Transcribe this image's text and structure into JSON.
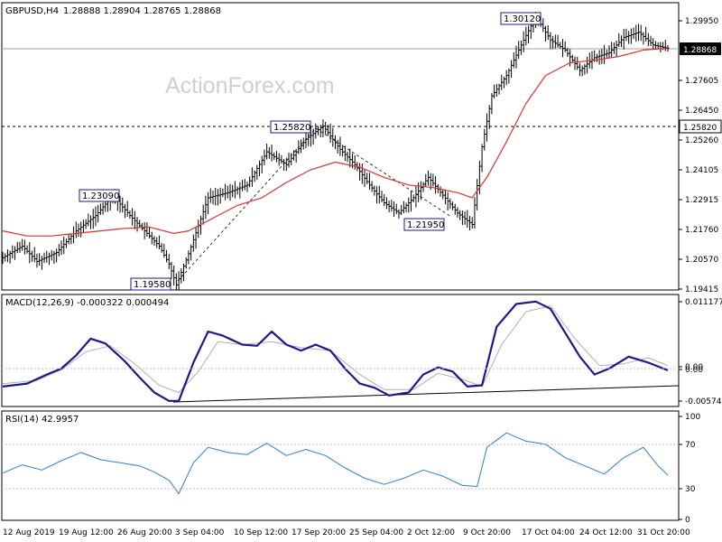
{
  "header": {
    "symbol": "GBPUSD,H4",
    "ohlc": "1.28888 1.28904 1.28765 1.28868"
  },
  "watermark": "ActionForex.com",
  "price_panel": {
    "y_ticks": [
      "1.29950",
      "1.27605",
      "1.26450",
      "1.25260",
      "1.24105",
      "1.22915",
      "1.21760",
      "1.20570",
      "1.19415"
    ],
    "current_price_label": "1.28868",
    "level_label": "1.25820",
    "annotations": [
      "1.23090",
      "1.19580",
      "1.25820",
      "1.21950",
      "1.30120"
    ]
  },
  "macd_panel": {
    "title": "MACD(12,26,9) -0.000322 0.000494",
    "y_ticks": [
      "0.011177",
      "0.00",
      "0.00",
      "-0.005746"
    ]
  },
  "rsi_panel": {
    "title": "RSI(14) 42.9957",
    "y_ticks": [
      "100",
      "70",
      "30",
      "0"
    ]
  },
  "x_axis": {
    "labels": [
      "12 Aug 2019",
      "19 Aug 12:00",
      "26 Aug 20:00",
      "3 Sep 04:00",
      "10 Sep 12:00",
      "17 Sep 20:00",
      "25 Sep 04:00",
      "2 Oct 12:00",
      "9 Oct 20:00",
      "17 Oct 04:00",
      "24 Oct 12:00",
      "31 Oct 20:00"
    ]
  },
  "colors": {
    "price_bars": "#000000",
    "moving_average": "#e03030",
    "macd_line": "#1a1a8c",
    "signal_line": "#b0b0b0",
    "rsi_line": "#2a7fd4",
    "grid": "#c0c0c0"
  },
  "chart_data": [
    {
      "type": "line",
      "name": "price",
      "points": [
        [
          0,
          1.2065
        ],
        [
          8,
          1.211
        ],
        [
          14,
          1.205
        ],
        [
          22,
          1.2085
        ],
        [
          30,
          1.217
        ],
        [
          38,
          1.223
        ],
        [
          45,
          1.2309
        ],
        [
          52,
          1.223
        ],
        [
          58,
          1.217
        ],
        [
          64,
          1.211
        ],
        [
          68,
          1.204
        ],
        [
          71,
          1.1958
        ],
        [
          76,
          1.208
        ],
        [
          84,
          1.23
        ],
        [
          92,
          1.232
        ],
        [
          100,
          1.235
        ],
        [
          108,
          1.248
        ],
        [
          116,
          1.243
        ],
        [
          124,
          1.253
        ],
        [
          131,
          1.2582
        ],
        [
          138,
          1.249
        ],
        [
          144,
          1.243
        ],
        [
          150,
          1.235
        ],
        [
          156,
          1.228
        ],
        [
          162,
          1.224
        ],
        [
          168,
          1.23
        ],
        [
          174,
          1.238
        ],
        [
          180,
          1.231
        ],
        [
          186,
          1.224
        ],
        [
          192,
          1.2195
        ],
        [
          196,
          1.25
        ],
        [
          200,
          1.27
        ],
        [
          206,
          1.278
        ],
        [
          212,
          1.29
        ],
        [
          218,
          1.3012
        ],
        [
          224,
          1.292
        ],
        [
          230,
          1.288
        ],
        [
          236,
          1.28
        ],
        [
          242,
          1.285
        ],
        [
          248,
          1.287
        ],
        [
          254,
          1.293
        ],
        [
          260,
          1.295
        ],
        [
          266,
          1.29
        ],
        [
          272,
          1.2887
        ]
      ]
    },
    {
      "type": "line",
      "name": "moving average",
      "points": [
        [
          0,
          1.217
        ],
        [
          10,
          1.215
        ],
        [
          20,
          1.215
        ],
        [
          30,
          1.216
        ],
        [
          40,
          1.217
        ],
        [
          50,
          1.218
        ],
        [
          60,
          1.2185
        ],
        [
          70,
          1.216
        ],
        [
          76,
          1.217
        ],
        [
          86,
          1.222
        ],
        [
          96,
          1.227
        ],
        [
          106,
          1.23
        ],
        [
          116,
          1.236
        ],
        [
          126,
          1.241
        ],
        [
          136,
          1.244
        ],
        [
          146,
          1.242
        ],
        [
          156,
          1.238
        ],
        [
          166,
          1.235
        ],
        [
          176,
          1.234
        ],
        [
          186,
          1.232
        ],
        [
          192,
          1.23
        ],
        [
          198,
          1.238
        ],
        [
          206,
          1.252
        ],
        [
          214,
          1.267
        ],
        [
          222,
          1.278
        ],
        [
          232,
          1.283
        ],
        [
          242,
          1.284
        ],
        [
          252,
          1.2855
        ],
        [
          262,
          1.288
        ],
        [
          272,
          1.2887
        ]
      ]
    },
    {
      "type": "line",
      "name": "MACD",
      "points": [
        [
          0,
          -0.003
        ],
        [
          10,
          -0.0025
        ],
        [
          18,
          -0.001
        ],
        [
          24,
          0.0
        ],
        [
          30,
          0.0022
        ],
        [
          36,
          0.005
        ],
        [
          42,
          0.0042
        ],
        [
          50,
          0.0012
        ],
        [
          56,
          -0.0015
        ],
        [
          62,
          -0.004
        ],
        [
          68,
          -0.0054
        ],
        [
          72,
          -0.0054
        ],
        [
          78,
          0.001
        ],
        [
          84,
          0.0062
        ],
        [
          90,
          0.0055
        ],
        [
          98,
          0.004
        ],
        [
          104,
          0.0038
        ],
        [
          110,
          0.0062
        ],
        [
          116,
          0.004
        ],
        [
          122,
          0.003
        ],
        [
          128,
          0.004
        ],
        [
          134,
          0.003
        ],
        [
          140,
          0.0
        ],
        [
          146,
          -0.0025
        ],
        [
          152,
          -0.0032
        ],
        [
          158,
          -0.0045
        ],
        [
          166,
          -0.004
        ],
        [
          172,
          -0.001
        ],
        [
          178,
          0.0002
        ],
        [
          184,
          -0.0005
        ],
        [
          190,
          -0.003
        ],
        [
          196,
          -0.0028
        ],
        [
          202,
          0.007
        ],
        [
          210,
          0.0108
        ],
        [
          218,
          0.0112
        ],
        [
          224,
          0.01
        ],
        [
          230,
          0.006
        ],
        [
          236,
          0.002
        ],
        [
          242,
          -0.001
        ],
        [
          248,
          0.0
        ],
        [
          256,
          0.002
        ],
        [
          264,
          0.001
        ],
        [
          272,
          -0.0003
        ]
      ]
    },
    {
      "type": "line",
      "name": "signal",
      "points": [
        [
          0,
          -0.0025
        ],
        [
          14,
          -0.002
        ],
        [
          24,
          -0.0002
        ],
        [
          34,
          0.0028
        ],
        [
          44,
          0.0038
        ],
        [
          54,
          0.0008
        ],
        [
          64,
          -0.0028
        ],
        [
          72,
          -0.004
        ],
        [
          80,
          -0.0005
        ],
        [
          88,
          0.0045
        ],
        [
          98,
          0.004
        ],
        [
          110,
          0.0045
        ],
        [
          122,
          0.0035
        ],
        [
          134,
          0.003
        ],
        [
          146,
          -0.001
        ],
        [
          156,
          -0.0035
        ],
        [
          168,
          -0.0035
        ],
        [
          178,
          -0.0008
        ],
        [
          188,
          -0.0018
        ],
        [
          196,
          -0.003
        ],
        [
          204,
          0.004
        ],
        [
          214,
          0.0095
        ],
        [
          224,
          0.0105
        ],
        [
          234,
          0.005
        ],
        [
          244,
          0.0005
        ],
        [
          254,
          0.0008
        ],
        [
          264,
          0.0018
        ],
        [
          272,
          0.0005
        ]
      ]
    },
    {
      "type": "line",
      "name": "RSI",
      "points": [
        [
          0,
          45
        ],
        [
          8,
          53
        ],
        [
          16,
          48
        ],
        [
          24,
          57
        ],
        [
          32,
          65
        ],
        [
          40,
          58
        ],
        [
          48,
          55
        ],
        [
          56,
          52
        ],
        [
          62,
          46
        ],
        [
          68,
          38
        ],
        [
          72,
          25
        ],
        [
          78,
          55
        ],
        [
          84,
          70
        ],
        [
          92,
          65
        ],
        [
          100,
          63
        ],
        [
          108,
          74
        ],
        [
          116,
          62
        ],
        [
          124,
          68
        ],
        [
          132,
          62
        ],
        [
          140,
          50
        ],
        [
          148,
          40
        ],
        [
          156,
          34
        ],
        [
          164,
          40
        ],
        [
          172,
          48
        ],
        [
          180,
          42
        ],
        [
          188,
          33
        ],
        [
          194,
          32
        ],
        [
          198,
          70
        ],
        [
          206,
          84
        ],
        [
          214,
          76
        ],
        [
          222,
          73
        ],
        [
          230,
          60
        ],
        [
          238,
          52
        ],
        [
          246,
          44
        ],
        [
          254,
          60
        ],
        [
          262,
          70
        ],
        [
          268,
          52
        ],
        [
          272,
          43
        ]
      ]
    }
  ]
}
